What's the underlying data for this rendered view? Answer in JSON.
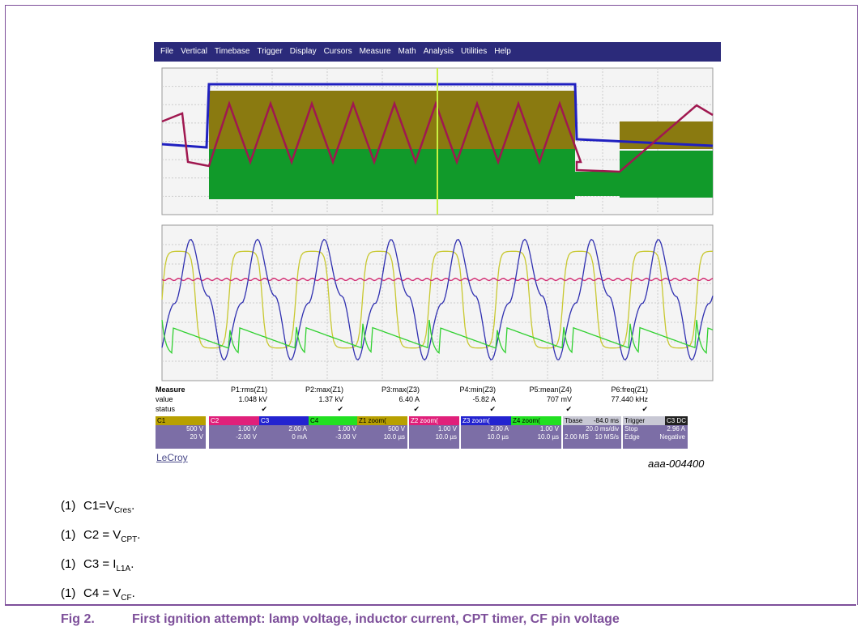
{
  "menu": [
    "File",
    "Vertical",
    "Timebase",
    "Trigger",
    "Display",
    "Cursors",
    "Measure",
    "Math",
    "Analysis",
    "Utilities",
    "Help"
  ],
  "measure": {
    "title": "Measure",
    "row_labels": [
      "value",
      "status"
    ],
    "params": [
      {
        "name": "P1:rms(Z1)",
        "value": "1.048 kV",
        "status": "✔"
      },
      {
        "name": "P2:max(Z1)",
        "value": "1.37 kV",
        "status": "✔"
      },
      {
        "name": "P3:max(Z3)",
        "value": "6.40 A",
        "status": "✔"
      },
      {
        "name": "P4:min(Z3)",
        "value": "-5.82 A",
        "status": "✔"
      },
      {
        "name": "P5:mean(Z4)",
        "value": "707 mV",
        "status": "✔"
      },
      {
        "name": "P6:freq(Z1)",
        "value": "77.440 kHz",
        "status": "✔"
      }
    ]
  },
  "channels": [
    {
      "name": "C1",
      "lines": [
        "500 V",
        "20 V"
      ]
    },
    {
      "name": "C2",
      "lines": [
        "1.00 V",
        "-2.00 V"
      ]
    },
    {
      "name": "C3",
      "lines": [
        "2.00 A",
        "0 mA"
      ]
    },
    {
      "name": "C4",
      "lines": [
        "1.00 V",
        "-3.00 V"
      ]
    },
    {
      "name": "Z1 zoom(",
      "lines": [
        "500 V",
        "10.0 µs"
      ]
    },
    {
      "name": "Z2 zoom(",
      "lines": [
        "1.00 V",
        "10.0 µs"
      ]
    },
    {
      "name": "Z3 zoom(",
      "lines": [
        "2.00 A",
        "10.0 µs"
      ]
    },
    {
      "name": "Z4 zoom(",
      "lines": [
        "1.00 V",
        "10.0 µs"
      ]
    }
  ],
  "timebase": {
    "name": "Tbase",
    "delay": "-84.0 ms",
    "div": "20.0 ms/div",
    "samples": "2.00 MS",
    "rate": "10 MS/s"
  },
  "trigger": {
    "name": "Trigger",
    "source": "C3 DC",
    "mode": "Stop",
    "level": "2.96 A",
    "kind": "Edge",
    "slope": "Negative"
  },
  "brand": "LeCroy",
  "figure_id": "aaa-004400",
  "notes": [
    {
      "num": "(1)",
      "text": "C1=V",
      "sub": "Cres",
      "end": "."
    },
    {
      "num": "(1)",
      "text": "C2 = V",
      "sub": "CPT",
      "end": "."
    },
    {
      "num": "(1)",
      "text": "C3 = I",
      "sub": "L1A",
      "end": "."
    },
    {
      "num": "(1)",
      "text": "C4 = V",
      "sub": "CF",
      "end": "."
    }
  ],
  "caption": {
    "label": "Fig 2.",
    "text": "First ignition attempt: lamp voltage, inductor current, CPT timer, CF pin voltage"
  }
}
